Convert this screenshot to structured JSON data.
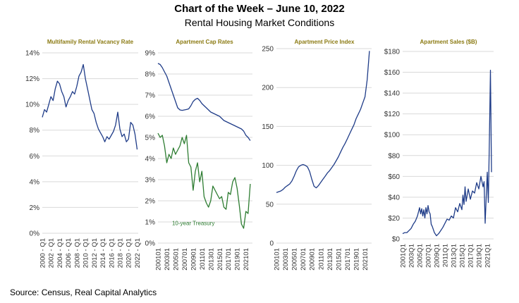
{
  "title": "Chart of the Week – June 10, 2022",
  "subtitle": "Rental Housing Market Conditions",
  "source": "Source:  Census, Real Capital Analytics",
  "colors": {
    "line_blue": "#1f3c88",
    "line_green": "#2e7d32",
    "title_gold": "#8b7a12",
    "grid": "#d9d9d9"
  },
  "chart_data": [
    {
      "type": "line",
      "title": "Multifamily Rental Vacancy Rate",
      "ylim": [
        0,
        14
      ],
      "yticks": [
        0,
        2,
        4,
        6,
        8,
        10,
        12,
        14
      ],
      "ytick_labels": [
        "0%",
        "2%",
        "4%",
        "6%",
        "8%",
        "10%",
        "12%",
        "14%"
      ],
      "xlim": [
        2000,
        2022.25
      ],
      "xticks": [
        2000,
        2002,
        2004,
        2006,
        2008,
        2010,
        2012,
        2014,
        2016,
        2018,
        2020,
        2022
      ],
      "xtick_labels": [
        "2000 - Q1",
        "2002 - Q1",
        "2004 - Q1",
        "2006 - Q1",
        "2008 - Q1",
        "2010 - Q1",
        "2012 - Q1",
        "2014 - Q1",
        "2016 - Q1",
        "2018 - Q1",
        "2020 - Q1",
        "2022 - Q1"
      ],
      "series": [
        {
          "name": "Multifamily Rental Vacancy Rate",
          "color": "#1f3c88",
          "x": [
            2000,
            2000.5,
            2001,
            2001.5,
            2002,
            2002.5,
            2003,
            2003.5,
            2004,
            2004.5,
            2005,
            2005.5,
            2006,
            2006.5,
            2007,
            2007.5,
            2008,
            2008.5,
            2009,
            2009.5,
            2010,
            2010.5,
            2011,
            2011.5,
            2012,
            2012.5,
            2013,
            2013.5,
            2014,
            2014.5,
            2015,
            2015.5,
            2016,
            2016.5,
            2017,
            2017.5,
            2018,
            2018.5,
            2019,
            2019.5,
            2020,
            2020.5,
            2021,
            2021.5,
            2022
          ],
          "y": [
            9.0,
            9.6,
            9.4,
            10.0,
            10.6,
            10.3,
            11.2,
            11.8,
            11.6,
            11.0,
            10.6,
            9.8,
            10.3,
            10.6,
            11.0,
            10.8,
            11.4,
            12.2,
            12.5,
            13.1,
            12.0,
            11.2,
            10.4,
            9.6,
            9.3,
            8.6,
            8.1,
            7.8,
            7.5,
            7.1,
            7.5,
            7.3,
            7.6,
            7.9,
            8.4,
            9.4,
            8.1,
            7.5,
            7.7,
            7.1,
            7.3,
            8.6,
            8.4,
            7.7,
            6.5
          ]
        }
      ]
    },
    {
      "type": "line",
      "title": "Apartment Cap Rates",
      "ylim": [
        0,
        9
      ],
      "yticks": [
        0,
        1,
        2,
        3,
        4,
        5,
        6,
        7,
        8,
        9
      ],
      "ytick_labels": [
        "0%",
        "1%",
        "2%",
        "3%",
        "4%",
        "5%",
        "6%",
        "7%",
        "8%",
        "9%"
      ],
      "xlim": [
        2001,
        2022.5
      ],
      "xticks": [
        2001,
        2003,
        2005,
        2007,
        2009,
        2011,
        2013,
        2015,
        2017,
        2019,
        2021
      ],
      "xtick_labels": [
        "200101",
        "200301",
        "200501",
        "200701",
        "200901",
        "201101",
        "201301",
        "201501",
        "201701",
        "201901",
        "202101"
      ],
      "annotation": "10-year Treasury",
      "series": [
        {
          "name": "Apartment Cap Rate",
          "color": "#1f3c88",
          "x": [
            2001,
            2001.5,
            2002,
            2002.5,
            2003,
            2003.5,
            2004,
            2004.5,
            2005,
            2005.5,
            2006,
            2006.5,
            2007,
            2007.5,
            2008,
            2008.5,
            2009,
            2009.5,
            2010,
            2010.5,
            2011,
            2011.5,
            2012,
            2012.5,
            2013,
            2013.5,
            2014,
            2014.5,
            2015,
            2015.5,
            2016,
            2016.5,
            2017,
            2017.5,
            2018,
            2018.5,
            2019,
            2019.5,
            2020,
            2020.5,
            2021,
            2021.5,
            2022
          ],
          "y": [
            8.5,
            8.45,
            8.3,
            8.1,
            7.9,
            7.6,
            7.3,
            7.0,
            6.7,
            6.4,
            6.3,
            6.28,
            6.3,
            6.32,
            6.35,
            6.5,
            6.7,
            6.8,
            6.85,
            6.75,
            6.6,
            6.5,
            6.4,
            6.3,
            6.2,
            6.15,
            6.1,
            6.05,
            6.0,
            5.9,
            5.8,
            5.75,
            5.7,
            5.65,
            5.6,
            5.55,
            5.5,
            5.45,
            5.4,
            5.3,
            5.1,
            5.0,
            4.85
          ]
        },
        {
          "name": "10-year Treasury",
          "color": "#2e7d32",
          "x": [
            2001,
            2001.5,
            2002,
            2002.5,
            2003,
            2003.5,
            2004,
            2004.5,
            2005,
            2005.5,
            2006,
            2006.5,
            2007,
            2007.5,
            2008,
            2008.5,
            2009,
            2009.5,
            2010,
            2010.5,
            2011,
            2011.5,
            2012,
            2012.5,
            2013,
            2013.5,
            2014,
            2014.5,
            2015,
            2015.5,
            2016,
            2016.5,
            2017,
            2017.5,
            2018,
            2018.5,
            2019,
            2019.5,
            2020,
            2020.5,
            2021,
            2021.5,
            2022
          ],
          "y": [
            5.2,
            5.0,
            5.1,
            4.6,
            3.8,
            4.2,
            4.0,
            4.5,
            4.2,
            4.4,
            4.6,
            5.0,
            4.7,
            5.1,
            3.8,
            3.6,
            2.5,
            3.4,
            3.8,
            2.9,
            3.4,
            2.2,
            1.9,
            1.7,
            2.0,
            2.7,
            2.5,
            2.3,
            2.1,
            2.2,
            1.7,
            1.6,
            2.4,
            2.3,
            2.9,
            3.1,
            2.6,
            1.8,
            0.9,
            0.7,
            1.5,
            1.4,
            2.8
          ]
        }
      ]
    },
    {
      "type": "line",
      "title": "Apartment Price Index",
      "ylim": [
        0,
        250
      ],
      "yticks": [
        0,
        50,
        100,
        150,
        200,
        250
      ],
      "ytick_labels": [
        "0",
        "50",
        "100",
        "150",
        "200",
        "250"
      ],
      "xlim": [
        2001,
        2022.5
      ],
      "xticks": [
        2001,
        2003,
        2005,
        2007,
        2009,
        2011,
        2013,
        2015,
        2017,
        2019,
        2021
      ],
      "xtick_labels": [
        "200101",
        "200301",
        "200501",
        "200701",
        "200901",
        "201101",
        "201301",
        "201501",
        "201701",
        "201901",
        "202101"
      ],
      "series": [
        {
          "name": "Apartment Price Index",
          "color": "#1f3c88",
          "x": [
            2001,
            2001.5,
            2002,
            2002.5,
            2003,
            2003.5,
            2004,
            2004.5,
            2005,
            2005.5,
            2006,
            2006.5,
            2007,
            2007.5,
            2008,
            2008.5,
            2009,
            2009.5,
            2010,
            2010.5,
            2011,
            2011.5,
            2012,
            2012.5,
            2013,
            2013.5,
            2014,
            2014.5,
            2015,
            2015.5,
            2016,
            2016.5,
            2017,
            2017.5,
            2018,
            2018.5,
            2019,
            2019.5,
            2020,
            2020.5,
            2021,
            2021.5,
            2022
          ],
          "y": [
            65,
            66,
            67,
            69,
            72,
            74,
            76,
            80,
            86,
            93,
            98,
            100,
            101,
            100,
            98,
            92,
            82,
            73,
            71,
            74,
            78,
            82,
            86,
            90,
            93,
            97,
            101,
            106,
            111,
            117,
            123,
            128,
            134,
            140,
            146,
            152,
            160,
            166,
            172,
            180,
            188,
            210,
            247
          ]
        }
      ]
    },
    {
      "type": "line",
      "title": "Apartment Sales ($B)",
      "ylim": [
        0,
        180
      ],
      "yticks": [
        0,
        20,
        40,
        60,
        80,
        100,
        120,
        140,
        160,
        180
      ],
      "ytick_labels": [
        "$0",
        "$20",
        "$40",
        "$60",
        "$80",
        "$100",
        "$120",
        "$140",
        "$160",
        "$180"
      ],
      "xlim": [
        2001,
        2022.5
      ],
      "xticks": [
        2001,
        2003,
        2005,
        2007,
        2009,
        2011,
        2013,
        2015,
        2017,
        2019,
        2021
      ],
      "xtick_labels": [
        "2001Q1",
        "2003Q1",
        "2005Q1",
        "2007Q1",
        "2009Q1",
        "2011Q1",
        "2013Q1",
        "2015Q1",
        "2017Q1",
        "2019Q1",
        "2021Q1"
      ],
      "series": [
        {
          "name": "Apartment Sales ($B)",
          "color": "#1f3c88",
          "x": [
            2001,
            2001.5,
            2002,
            2002.5,
            2003,
            2003.5,
            2004,
            2004.5,
            2005,
            2005.25,
            2005.5,
            2005.75,
            2006,
            2006.25,
            2006.5,
            2006.75,
            2007,
            2007.25,
            2007.5,
            2007.75,
            2008,
            2008.5,
            2009,
            2009.5,
            2010,
            2010.5,
            2011,
            2011.5,
            2012,
            2012.5,
            2013,
            2013.5,
            2014,
            2014.5,
            2015,
            2015.25,
            2015.5,
            2015.75,
            2016,
            2016.5,
            2017,
            2017.5,
            2018,
            2018.5,
            2019,
            2019.5,
            2020,
            2020.25,
            2020.5,
            2020.75,
            2021,
            2021.25,
            2021.5,
            2021.75,
            2022
          ],
          "y": [
            5,
            6,
            6,
            8,
            10,
            14,
            17,
            22,
            30,
            24,
            29,
            22,
            28,
            20,
            30,
            24,
            32,
            26,
            24,
            14,
            12,
            6,
            3,
            5,
            8,
            11,
            15,
            19,
            18,
            22,
            20,
            30,
            26,
            34,
            28,
            42,
            33,
            50,
            36,
            48,
            38,
            46,
            44,
            54,
            48,
            60,
            50,
            55,
            15,
            40,
            64,
            35,
            95,
            162,
            64
          ]
        }
      ]
    }
  ]
}
